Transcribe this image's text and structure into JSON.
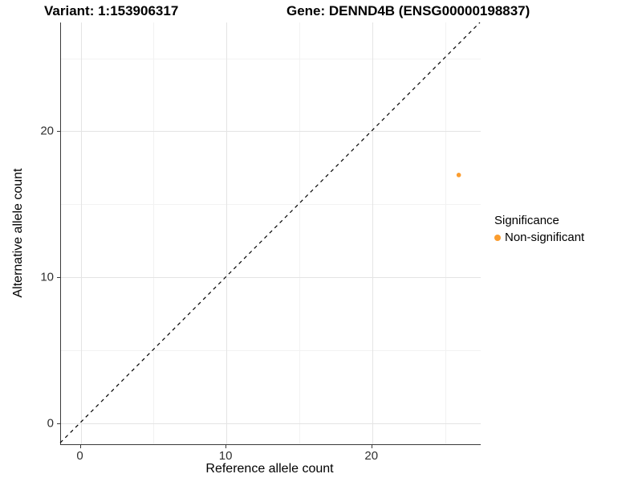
{
  "titles": {
    "variant": "Variant: 1:153906317",
    "gene": "Gene: DENND4B (ENSG00000198837)"
  },
  "chart_data": {
    "type": "scatter",
    "xlabel": "Reference allele count",
    "ylabel": "Alternative allele count",
    "xlim": [
      -1.35,
      27.45
    ],
    "ylim": [
      -1.45,
      27.45
    ],
    "xticks": [
      0,
      10,
      20
    ],
    "yticks": [
      0,
      10,
      20
    ],
    "xticks_minor": [
      5,
      15,
      25
    ],
    "yticks_minor": [
      5,
      15,
      25
    ],
    "grid": true,
    "identity_line": {
      "type": "y=x",
      "style": "dashed",
      "color": "#000000"
    },
    "series": [
      {
        "name": "Non-significant",
        "color": "#FB9D2F",
        "points": [
          {
            "x": 26,
            "y": 17
          }
        ]
      }
    ],
    "legend": {
      "title": "Significance",
      "position": "right",
      "items": [
        {
          "label": "Non-significant",
          "color": "#FB9D2F"
        }
      ]
    }
  },
  "colors": {
    "accent_point": "#FB9D2F",
    "axis_line": "#3a3a3a",
    "grid_major": "#e4e4e4",
    "grid_minor": "#f2f2f2",
    "background": "#ffffff"
  }
}
